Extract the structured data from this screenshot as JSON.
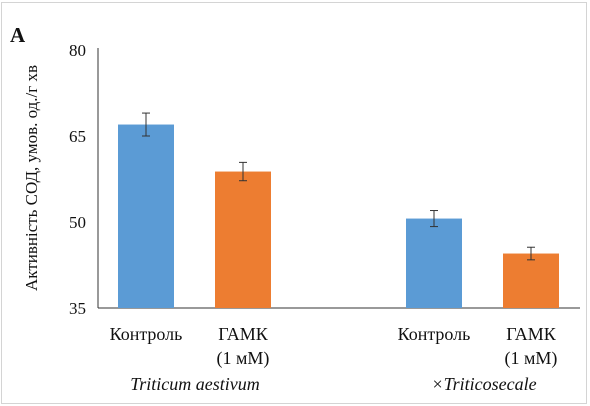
{
  "panel_label": "A",
  "chart_data": {
    "type": "bar",
    "ylabel": "Активність СОД, умов. од./г хв",
    "ylim": [
      35,
      80
    ],
    "yticks": [
      "35",
      "50",
      "65",
      "80"
    ],
    "grid": false,
    "colors": {
      "control": "#5b9bd5",
      "gaba": "#ed7d31",
      "axis": "#333333"
    },
    "groups": [
      {
        "name": "Triticum aestivum",
        "bars": [
          {
            "label_line1": "Контроль",
            "label_line2": "",
            "value": 67.0,
            "error": 2.0,
            "color": "#5b9bd5"
          },
          {
            "label_line1": "ГАМК",
            "label_line2": "(1 мМ)",
            "value": 58.8,
            "error": 1.6,
            "color": "#ed7d31"
          }
        ]
      },
      {
        "name": "×Triticosecale",
        "bars": [
          {
            "label_line1": "Контроль",
            "label_line2": "",
            "value": 50.6,
            "error": 1.4,
            "color": "#5b9bd5"
          },
          {
            "label_line1": "ГАМК",
            "label_line2": "(1 мМ)",
            "value": 44.5,
            "error": 1.1,
            "color": "#ed7d31"
          }
        ]
      }
    ]
  }
}
